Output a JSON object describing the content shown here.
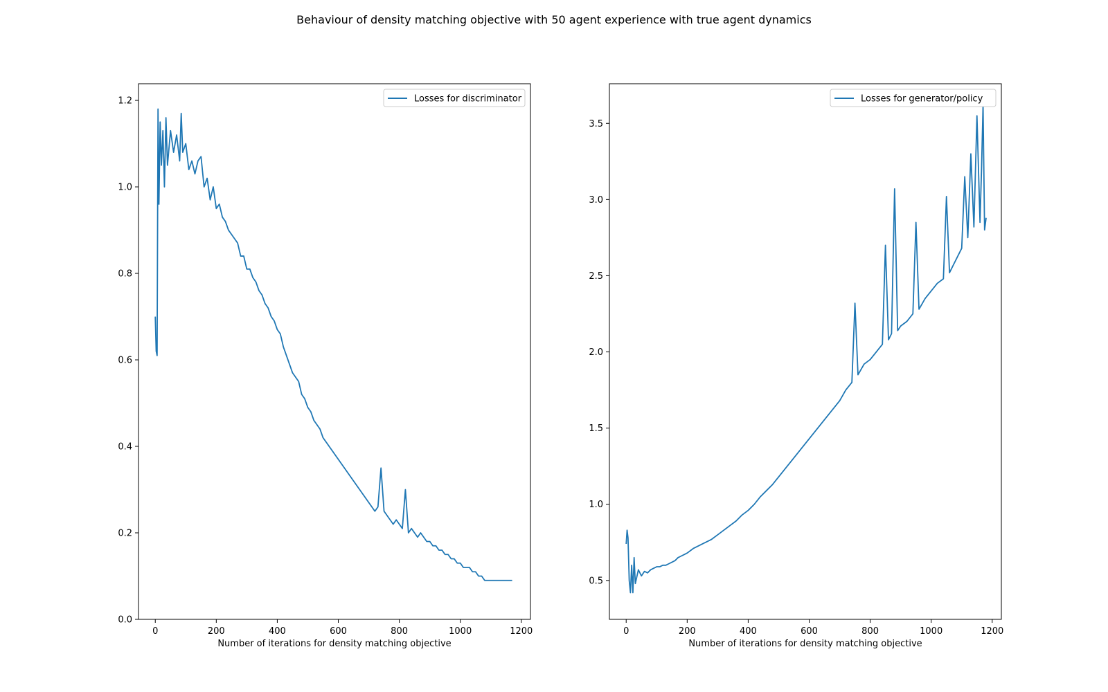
{
  "title": "Behaviour of density matching objective with 50 agent experience with true agent dynamics",
  "colors": {
    "series": "#1f77b4",
    "axes": "#000000",
    "legend_border": "#cccccc"
  },
  "chart_data": [
    {
      "type": "line",
      "xlabel": "Number of iterations for density matching objective",
      "ylabel": "",
      "xlim": [
        -55,
        1230
      ],
      "ylim": [
        0.0,
        1.2385
      ],
      "xticks": [
        0,
        200,
        400,
        600,
        800,
        1000,
        1200
      ],
      "yticks": [
        0.0,
        0.2,
        0.4,
        0.6,
        0.8,
        1.0,
        1.2
      ],
      "ytick_labels": [
        "0.0",
        "0.2",
        "0.4",
        "0.6",
        "0.8",
        "1.0",
        "1.2"
      ],
      "legend": "top-right",
      "grid": false,
      "series": [
        {
          "name": "Losses for discriminator",
          "points": [
            [
              0,
              0.7
            ],
            [
              3,
              0.62
            ],
            [
              6,
              0.61
            ],
            [
              9,
              1.18
            ],
            [
              12,
              0.96
            ],
            [
              16,
              1.15
            ],
            [
              20,
              1.05
            ],
            [
              25,
              1.13
            ],
            [
              30,
              1.0
            ],
            [
              35,
              1.16
            ],
            [
              40,
              1.05
            ],
            [
              50,
              1.13
            ],
            [
              60,
              1.08
            ],
            [
              70,
              1.12
            ],
            [
              80,
              1.06
            ],
            [
              85,
              1.17
            ],
            [
              90,
              1.08
            ],
            [
              100,
              1.1
            ],
            [
              110,
              1.04
            ],
            [
              120,
              1.06
            ],
            [
              130,
              1.03
            ],
            [
              140,
              1.06
            ],
            [
              150,
              1.07
            ],
            [
              160,
              1.0
            ],
            [
              170,
              1.02
            ],
            [
              180,
              0.97
            ],
            [
              190,
              1.0
            ],
            [
              200,
              0.95
            ],
            [
              210,
              0.96
            ],
            [
              220,
              0.93
            ],
            [
              230,
              0.92
            ],
            [
              240,
              0.9
            ],
            [
              250,
              0.89
            ],
            [
              260,
              0.88
            ],
            [
              270,
              0.87
            ],
            [
              280,
              0.84
            ],
            [
              290,
              0.84
            ],
            [
              300,
              0.81
            ],
            [
              310,
              0.81
            ],
            [
              320,
              0.79
            ],
            [
              330,
              0.78
            ],
            [
              340,
              0.76
            ],
            [
              350,
              0.75
            ],
            [
              360,
              0.73
            ],
            [
              370,
              0.72
            ],
            [
              380,
              0.7
            ],
            [
              390,
              0.69
            ],
            [
              400,
              0.67
            ],
            [
              410,
              0.66
            ],
            [
              420,
              0.63
            ],
            [
              430,
              0.61
            ],
            [
              440,
              0.59
            ],
            [
              450,
              0.57
            ],
            [
              460,
              0.56
            ],
            [
              470,
              0.55
            ],
            [
              480,
              0.52
            ],
            [
              490,
              0.51
            ],
            [
              500,
              0.49
            ],
            [
              510,
              0.48
            ],
            [
              520,
              0.46
            ],
            [
              530,
              0.45
            ],
            [
              540,
              0.44
            ],
            [
              550,
              0.42
            ],
            [
              560,
              0.41
            ],
            [
              570,
              0.4
            ],
            [
              580,
              0.39
            ],
            [
              590,
              0.38
            ],
            [
              600,
              0.37
            ],
            [
              610,
              0.36
            ],
            [
              620,
              0.35
            ],
            [
              630,
              0.34
            ],
            [
              640,
              0.33
            ],
            [
              650,
              0.32
            ],
            [
              660,
              0.31
            ],
            [
              670,
              0.3
            ],
            [
              680,
              0.29
            ],
            [
              690,
              0.28
            ],
            [
              700,
              0.27
            ],
            [
              710,
              0.26
            ],
            [
              720,
              0.25
            ],
            [
              730,
              0.26
            ],
            [
              740,
              0.35
            ],
            [
              750,
              0.25
            ],
            [
              760,
              0.24
            ],
            [
              770,
              0.23
            ],
            [
              780,
              0.22
            ],
            [
              790,
              0.23
            ],
            [
              800,
              0.22
            ],
            [
              810,
              0.21
            ],
            [
              820,
              0.3
            ],
            [
              830,
              0.2
            ],
            [
              840,
              0.21
            ],
            [
              850,
              0.2
            ],
            [
              860,
              0.19
            ],
            [
              870,
              0.2
            ],
            [
              880,
              0.19
            ],
            [
              890,
              0.18
            ],
            [
              900,
              0.18
            ],
            [
              910,
              0.17
            ],
            [
              920,
              0.17
            ],
            [
              930,
              0.16
            ],
            [
              940,
              0.16
            ],
            [
              950,
              0.15
            ],
            [
              960,
              0.15
            ],
            [
              970,
              0.14
            ],
            [
              980,
              0.14
            ],
            [
              990,
              0.13
            ],
            [
              1000,
              0.13
            ],
            [
              1010,
              0.12
            ],
            [
              1020,
              0.12
            ],
            [
              1030,
              0.12
            ],
            [
              1040,
              0.11
            ],
            [
              1050,
              0.11
            ],
            [
              1060,
              0.1
            ],
            [
              1070,
              0.1
            ],
            [
              1080,
              0.09
            ],
            [
              1090,
              0.09
            ],
            [
              1100,
              0.09
            ],
            [
              1110,
              0.09
            ],
            [
              1120,
              0.09
            ],
            [
              1130,
              0.09
            ],
            [
              1140,
              0.09
            ],
            [
              1150,
              0.09
            ],
            [
              1160,
              0.09
            ],
            [
              1170,
              0.09
            ]
          ]
        }
      ]
    },
    {
      "type": "line",
      "xlabel": "Number of iterations for density matching objective",
      "ylabel": "",
      "xlim": [
        -55,
        1230
      ],
      "ylim": [
        0.245,
        3.76
      ],
      "xticks": [
        0,
        200,
        400,
        600,
        800,
        1000,
        1200
      ],
      "yticks": [
        0.5,
        1.0,
        1.5,
        2.0,
        2.5,
        3.0,
        3.5
      ],
      "ytick_labels": [
        "0.5",
        "1.0",
        "1.5",
        "2.0",
        "2.5",
        "3.0",
        "3.5"
      ],
      "legend": "top-right",
      "grid": false,
      "series": [
        {
          "name": "Losses for generator/policy",
          "points": [
            [
              0,
              0.74
            ],
            [
              3,
              0.83
            ],
            [
              6,
              0.78
            ],
            [
              10,
              0.5
            ],
            [
              14,
              0.42
            ],
            [
              18,
              0.6
            ],
            [
              22,
              0.42
            ],
            [
              26,
              0.65
            ],
            [
              30,
              0.48
            ],
            [
              40,
              0.57
            ],
            [
              50,
              0.53
            ],
            [
              60,
              0.56
            ],
            [
              70,
              0.55
            ],
            [
              80,
              0.57
            ],
            [
              90,
              0.58
            ],
            [
              100,
              0.59
            ],
            [
              110,
              0.59
            ],
            [
              120,
              0.6
            ],
            [
              130,
              0.6
            ],
            [
              140,
              0.61
            ],
            [
              150,
              0.62
            ],
            [
              160,
              0.63
            ],
            [
              170,
              0.65
            ],
            [
              180,
              0.66
            ],
            [
              190,
              0.67
            ],
            [
              200,
              0.68
            ],
            [
              220,
              0.71
            ],
            [
              240,
              0.73
            ],
            [
              260,
              0.75
            ],
            [
              280,
              0.77
            ],
            [
              300,
              0.8
            ],
            [
              320,
              0.83
            ],
            [
              340,
              0.86
            ],
            [
              360,
              0.89
            ],
            [
              380,
              0.93
            ],
            [
              400,
              0.96
            ],
            [
              420,
              1.0
            ],
            [
              440,
              1.05
            ],
            [
              460,
              1.09
            ],
            [
              480,
              1.13
            ],
            [
              500,
              1.18
            ],
            [
              520,
              1.23
            ],
            [
              540,
              1.28
            ],
            [
              560,
              1.33
            ],
            [
              580,
              1.38
            ],
            [
              600,
              1.43
            ],
            [
              620,
              1.48
            ],
            [
              640,
              1.53
            ],
            [
              660,
              1.58
            ],
            [
              680,
              1.63
            ],
            [
              700,
              1.68
            ],
            [
              720,
              1.75
            ],
            [
              740,
              1.8
            ],
            [
              750,
              2.32
            ],
            [
              760,
              1.85
            ],
            [
              780,
              1.92
            ],
            [
              800,
              1.95
            ],
            [
              820,
              2.0
            ],
            [
              840,
              2.05
            ],
            [
              850,
              2.7
            ],
            [
              860,
              2.08
            ],
            [
              870,
              2.12
            ],
            [
              880,
              3.07
            ],
            [
              890,
              2.14
            ],
            [
              900,
              2.17
            ],
            [
              920,
              2.2
            ],
            [
              940,
              2.25
            ],
            [
              950,
              2.85
            ],
            [
              960,
              2.28
            ],
            [
              980,
              2.35
            ],
            [
              1000,
              2.4
            ],
            [
              1020,
              2.45
            ],
            [
              1040,
              2.48
            ],
            [
              1050,
              3.02
            ],
            [
              1060,
              2.52
            ],
            [
              1080,
              2.6
            ],
            [
              1100,
              2.68
            ],
            [
              1110,
              3.15
            ],
            [
              1120,
              2.75
            ],
            [
              1130,
              3.3
            ],
            [
              1140,
              2.82
            ],
            [
              1150,
              3.55
            ],
            [
              1160,
              2.85
            ],
            [
              1165,
              3.2
            ],
            [
              1170,
              3.62
            ],
            [
              1175,
              2.8
            ],
            [
              1180,
              2.88
            ]
          ]
        }
      ]
    }
  ]
}
